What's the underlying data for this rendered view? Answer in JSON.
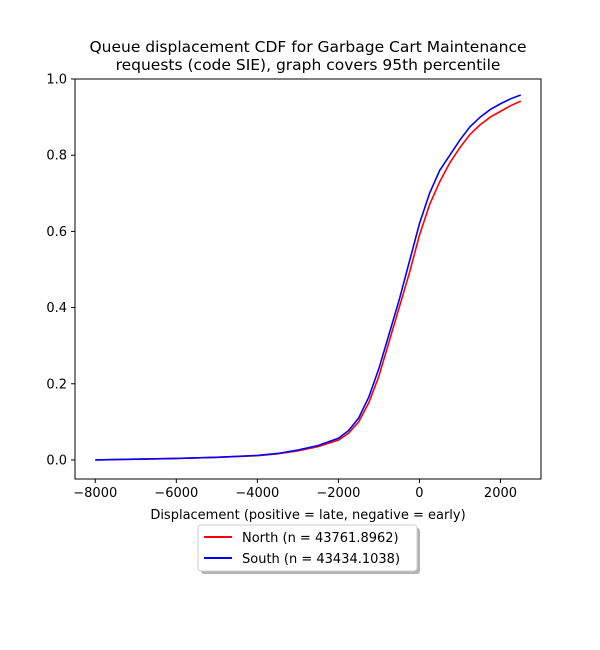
{
  "chart_data": {
    "type": "line",
    "title_lines": [
      "Queue displacement CDF for Garbage Cart Maintenance",
      "requests (code SIE), graph covers 95th percentile"
    ],
    "xlabel": "Displacement (positive = late, negative = early)",
    "ylabel": "",
    "xlim": [
      -8500,
      3000
    ],
    "ylim": [
      -0.05,
      1.0
    ],
    "xticks": [
      -8000,
      -6000,
      -4000,
      -2000,
      0,
      2000
    ],
    "xtick_labels": [
      "−8000",
      "−6000",
      "−4000",
      "−2000",
      "0",
      "2000"
    ],
    "yticks": [
      0.0,
      0.2,
      0.4,
      0.6,
      0.8,
      1.0
    ],
    "ytick_labels": [
      "0.0",
      "0.2",
      "0.4",
      "0.6",
      "0.8",
      "1.0"
    ],
    "grid": false,
    "legend_position": "below-plot",
    "x": [
      -8000,
      -7000,
      -6000,
      -5000,
      -4000,
      -3500,
      -3000,
      -2500,
      -2000,
      -1750,
      -1500,
      -1250,
      -1000,
      -750,
      -500,
      -250,
      0,
      250,
      500,
      750,
      1000,
      1250,
      1500,
      1750,
      2000,
      2250,
      2500
    ],
    "series": [
      {
        "name": "North (n = 43761.8962)",
        "color": "#ff0000",
        "values": [
          0.0,
          0.002,
          0.004,
          0.007,
          0.011,
          0.016,
          0.024,
          0.035,
          0.052,
          0.07,
          0.1,
          0.15,
          0.22,
          0.31,
          0.4,
          0.49,
          0.59,
          0.67,
          0.73,
          0.78,
          0.82,
          0.855,
          0.88,
          0.9,
          0.915,
          0.93,
          0.942
        ]
      },
      {
        "name": "South (n = 43434.1038)",
        "color": "#0000ff",
        "values": [
          0.0,
          0.002,
          0.004,
          0.007,
          0.012,
          0.017,
          0.026,
          0.038,
          0.057,
          0.077,
          0.11,
          0.165,
          0.24,
          0.33,
          0.42,
          0.52,
          0.62,
          0.7,
          0.76,
          0.8,
          0.84,
          0.875,
          0.9,
          0.92,
          0.935,
          0.948,
          0.958
        ]
      }
    ]
  }
}
